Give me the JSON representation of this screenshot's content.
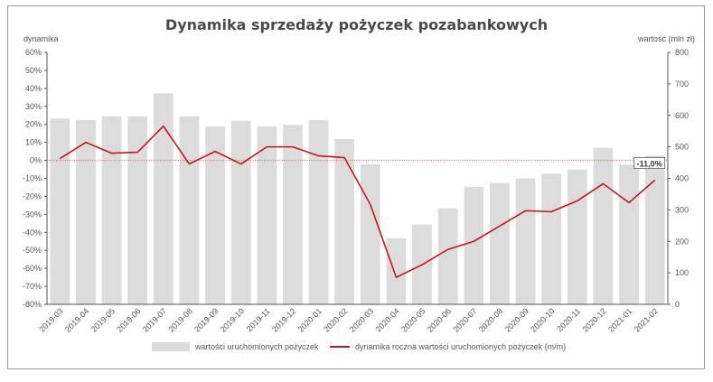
{
  "title": "Dynamika sprzedaży pożyczek pozabankowych",
  "left_axis_title": "dynamika",
  "right_axis_title": "wartość (mln zł)",
  "legend": {
    "bars": "wartości uruchomionych pożyczek",
    "line": "dynamika roczna wartości uruchomionych pożyczek (m/m)"
  },
  "annotation": "-11,0%",
  "colors": {
    "bar": "#dcdcdc",
    "line": "#c8141e",
    "zero_line": "#d9613a"
  },
  "chart_data": {
    "type": "bar+line",
    "categories": [
      "2019-03",
      "2019-04",
      "2019-05",
      "2019-06",
      "2019-07",
      "2019-08",
      "2019-09",
      "2019-10",
      "2019-11",
      "2019-12",
      "2020-01",
      "2020-02",
      "2020-03",
      "2020-04",
      "2020-05",
      "2020-06",
      "2020-07",
      "2020-08",
      "2020-09",
      "2020-10",
      "2020-11",
      "2020-12",
      "2021-01",
      "2021-02"
    ],
    "series": [
      {
        "name": "wartości uruchomionych pożyczek",
        "type": "bar",
        "axis": "right",
        "values": [
          590,
          585,
          597,
          597,
          670,
          597,
          565,
          583,
          565,
          570,
          585,
          525,
          445,
          210,
          253,
          305,
          373,
          385,
          400,
          415,
          428,
          497,
          443,
          472
        ]
      },
      {
        "name": "dynamika roczna wartości uruchomionych pożyczek (m/m)",
        "type": "line",
        "axis": "left",
        "values": [
          1.0,
          10.0,
          4.0,
          4.5,
          19.0,
          -2.0,
          5.0,
          -2.0,
          7.5,
          7.5,
          2.5,
          1.5,
          -24.5,
          -65.0,
          -58.0,
          -49.5,
          -45.0,
          -36.5,
          -28.0,
          -28.5,
          -22.5,
          -13.0,
          -23.5,
          -11.0
        ]
      }
    ],
    "left_axis": {
      "min": -80,
      "max": 60,
      "step": 10,
      "unit": "%"
    },
    "right_axis": {
      "min": 0,
      "max": 800,
      "step": 100
    },
    "reference_line": 0
  }
}
